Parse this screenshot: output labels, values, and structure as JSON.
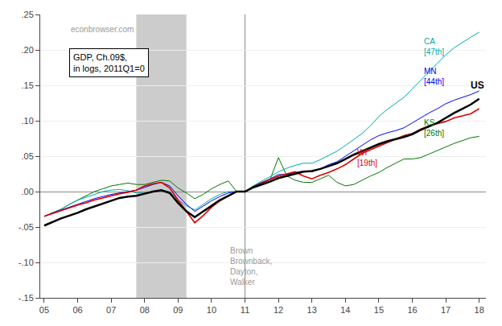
{
  "chart_data": {
    "type": "line",
    "x": [
      2005.0,
      2005.25,
      2005.5,
      2005.75,
      2006.0,
      2006.25,
      2006.5,
      2006.75,
      2007.0,
      2007.25,
      2007.5,
      2007.75,
      2008.0,
      2008.25,
      2008.5,
      2008.75,
      2009.0,
      2009.25,
      2009.5,
      2009.75,
      2010.0,
      2010.25,
      2010.5,
      2010.75,
      2011.0,
      2011.25,
      2011.5,
      2011.75,
      2012.0,
      2012.25,
      2012.5,
      2012.75,
      2013.0,
      2013.25,
      2013.5,
      2013.75,
      2014.0,
      2014.25,
      2014.5,
      2014.75,
      2015.0,
      2015.25,
      2015.5,
      2015.75,
      2016.0,
      2016.25,
      2016.5,
      2016.75,
      2017.0,
      2017.25,
      2017.5,
      2017.75,
      2018.0
    ],
    "series": [
      {
        "name": "KS\n[26th]",
        "color": "#007700",
        "label_x": 2016.3,
        "label_y": 0.09,
        "values": [
          -0.035,
          -0.03,
          -0.025,
          -0.018,
          -0.012,
          -0.006,
          0.0,
          0.004,
          0.008,
          0.01,
          0.012,
          0.01,
          0.01,
          0.013,
          0.016,
          0.015,
          0.005,
          -0.002,
          -0.01,
          -0.004,
          0.004,
          0.01,
          0.015,
          0.0,
          0.0,
          0.008,
          0.013,
          0.017,
          0.048,
          0.022,
          0.016,
          0.013,
          0.013,
          0.018,
          0.023,
          0.013,
          0.008,
          0.01,
          0.016,
          0.022,
          0.027,
          0.034,
          0.04,
          0.046,
          0.046,
          0.048,
          0.053,
          0.058,
          0.063,
          0.068,
          0.072,
          0.076,
          0.078
        ]
      },
      {
        "name": "CA\n[47th]",
        "color": "#00AAAA",
        "label_x": 2016.3,
        "label_y": 0.205,
        "values": [
          -0.035,
          -0.03,
          -0.025,
          -0.018,
          -0.012,
          -0.008,
          -0.004,
          0.0,
          0.002,
          0.003,
          0.001,
          -0.002,
          -0.002,
          0.0,
          0.002,
          0.0,
          -0.012,
          -0.02,
          -0.026,
          -0.018,
          -0.01,
          -0.004,
          0.0,
          0.0,
          0.0,
          0.008,
          0.015,
          0.021,
          0.028,
          0.033,
          0.037,
          0.04,
          0.04,
          0.045,
          0.051,
          0.057,
          0.065,
          0.074,
          0.082,
          0.093,
          0.106,
          0.116,
          0.124,
          0.133,
          0.145,
          0.157,
          0.168,
          0.18,
          0.193,
          0.203,
          0.211,
          0.218,
          0.225
        ]
      },
      {
        "name": "MN\n[44th]",
        "color": "#0000EE",
        "label_x": 2016.3,
        "label_y": 0.162,
        "values": [
          -0.035,
          -0.03,
          -0.026,
          -0.022,
          -0.018,
          -0.014,
          -0.01,
          -0.007,
          -0.004,
          -0.002,
          0.0,
          0.002,
          0.006,
          0.01,
          0.013,
          0.008,
          -0.006,
          -0.018,
          -0.028,
          -0.02,
          -0.013,
          -0.007,
          -0.002,
          0.0,
          0.0,
          0.007,
          0.013,
          0.018,
          0.024,
          0.024,
          0.027,
          0.029,
          0.028,
          0.032,
          0.038,
          0.042,
          0.05,
          0.058,
          0.066,
          0.073,
          0.079,
          0.083,
          0.086,
          0.09,
          0.097,
          0.104,
          0.111,
          0.117,
          0.124,
          0.129,
          0.133,
          0.137,
          0.142
        ]
      },
      {
        "name": "WI\n[19th]",
        "color": "#DD0000",
        "label_x": 2014.3,
        "label_y": 0.048,
        "values": [
          -0.035,
          -0.031,
          -0.027,
          -0.023,
          -0.019,
          -0.016,
          -0.012,
          -0.009,
          -0.006,
          -0.003,
          -0.001,
          0.002,
          0.008,
          0.011,
          0.013,
          0.005,
          -0.012,
          -0.028,
          -0.044,
          -0.034,
          -0.022,
          -0.013,
          -0.006,
          0.0,
          0.0,
          0.006,
          0.012,
          0.017,
          0.022,
          0.025,
          0.028,
          0.022,
          0.018,
          0.023,
          0.027,
          0.032,
          0.038,
          0.046,
          0.054,
          0.059,
          0.064,
          0.069,
          0.074,
          0.079,
          0.082,
          0.088,
          0.093,
          0.096,
          0.099,
          0.104,
          0.107,
          0.11,
          0.117
        ]
      },
      {
        "name": "US",
        "color": "#000000",
        "label_x": 2017.7,
        "label_y": 0.15,
        "values": [
          -0.048,
          -0.043,
          -0.038,
          -0.034,
          -0.03,
          -0.025,
          -0.021,
          -0.017,
          -0.013,
          -0.009,
          -0.007,
          -0.006,
          -0.003,
          0.0,
          0.002,
          -0.002,
          -0.016,
          -0.028,
          -0.036,
          -0.028,
          -0.02,
          -0.012,
          -0.006,
          0.0,
          0.0,
          0.006,
          0.01,
          0.014,
          0.019,
          0.022,
          0.025,
          0.028,
          0.029,
          0.032,
          0.036,
          0.04,
          0.046,
          0.052,
          0.057,
          0.062,
          0.067,
          0.071,
          0.074,
          0.077,
          0.081,
          0.087,
          0.092,
          0.097,
          0.104,
          0.111,
          0.117,
          0.123,
          0.131
        ]
      }
    ],
    "xlim": [
      2004.88,
      2018.2
    ],
    "xticks": [
      {
        "value": 2005,
        "label": "05"
      },
      {
        "value": 2006,
        "label": "06"
      },
      {
        "value": 2007,
        "label": "07"
      },
      {
        "value": 2008,
        "label": "08"
      },
      {
        "value": 2009,
        "label": "09"
      },
      {
        "value": 2010,
        "label": "10"
      },
      {
        "value": 2011,
        "label": "11"
      },
      {
        "value": 2012,
        "label": "12"
      },
      {
        "value": 2013,
        "label": "13"
      },
      {
        "value": 2014,
        "label": "14"
      },
      {
        "value": 2015,
        "label": "15"
      },
      {
        "value": 2016,
        "label": "16"
      },
      {
        "value": 2017,
        "label": "17"
      },
      {
        "value": 2018,
        "label": "18"
      }
    ],
    "ylim": [
      -0.15,
      0.25
    ],
    "yticks": [
      {
        "value": -0.15,
        "label": "-.15"
      },
      {
        "value": -0.1,
        "label": "-.10"
      },
      {
        "value": -0.05,
        "label": "-.05"
      },
      {
        "value": 0.0,
        "label": ".00"
      },
      {
        "value": 0.05,
        "label": ".05"
      },
      {
        "value": 0.1,
        "label": ".10"
      },
      {
        "value": 0.15,
        "label": ".15"
      },
      {
        "value": 0.2,
        "label": ".20"
      },
      {
        "value": 0.25,
        "label": ".25"
      }
    ],
    "grid": "y",
    "shaded_x": [
      2007.75,
      2009.25
    ],
    "vline_x": 2011.0,
    "annotations": [
      {
        "text": "Brown\nBrownback,\nDayton,\nWalker",
        "x": 2010.5,
        "y": -0.075
      }
    ],
    "watermark": "econbrowser.com",
    "box_text": "GDP, Ch.09$,\nin logs, 2011Q1=0"
  }
}
